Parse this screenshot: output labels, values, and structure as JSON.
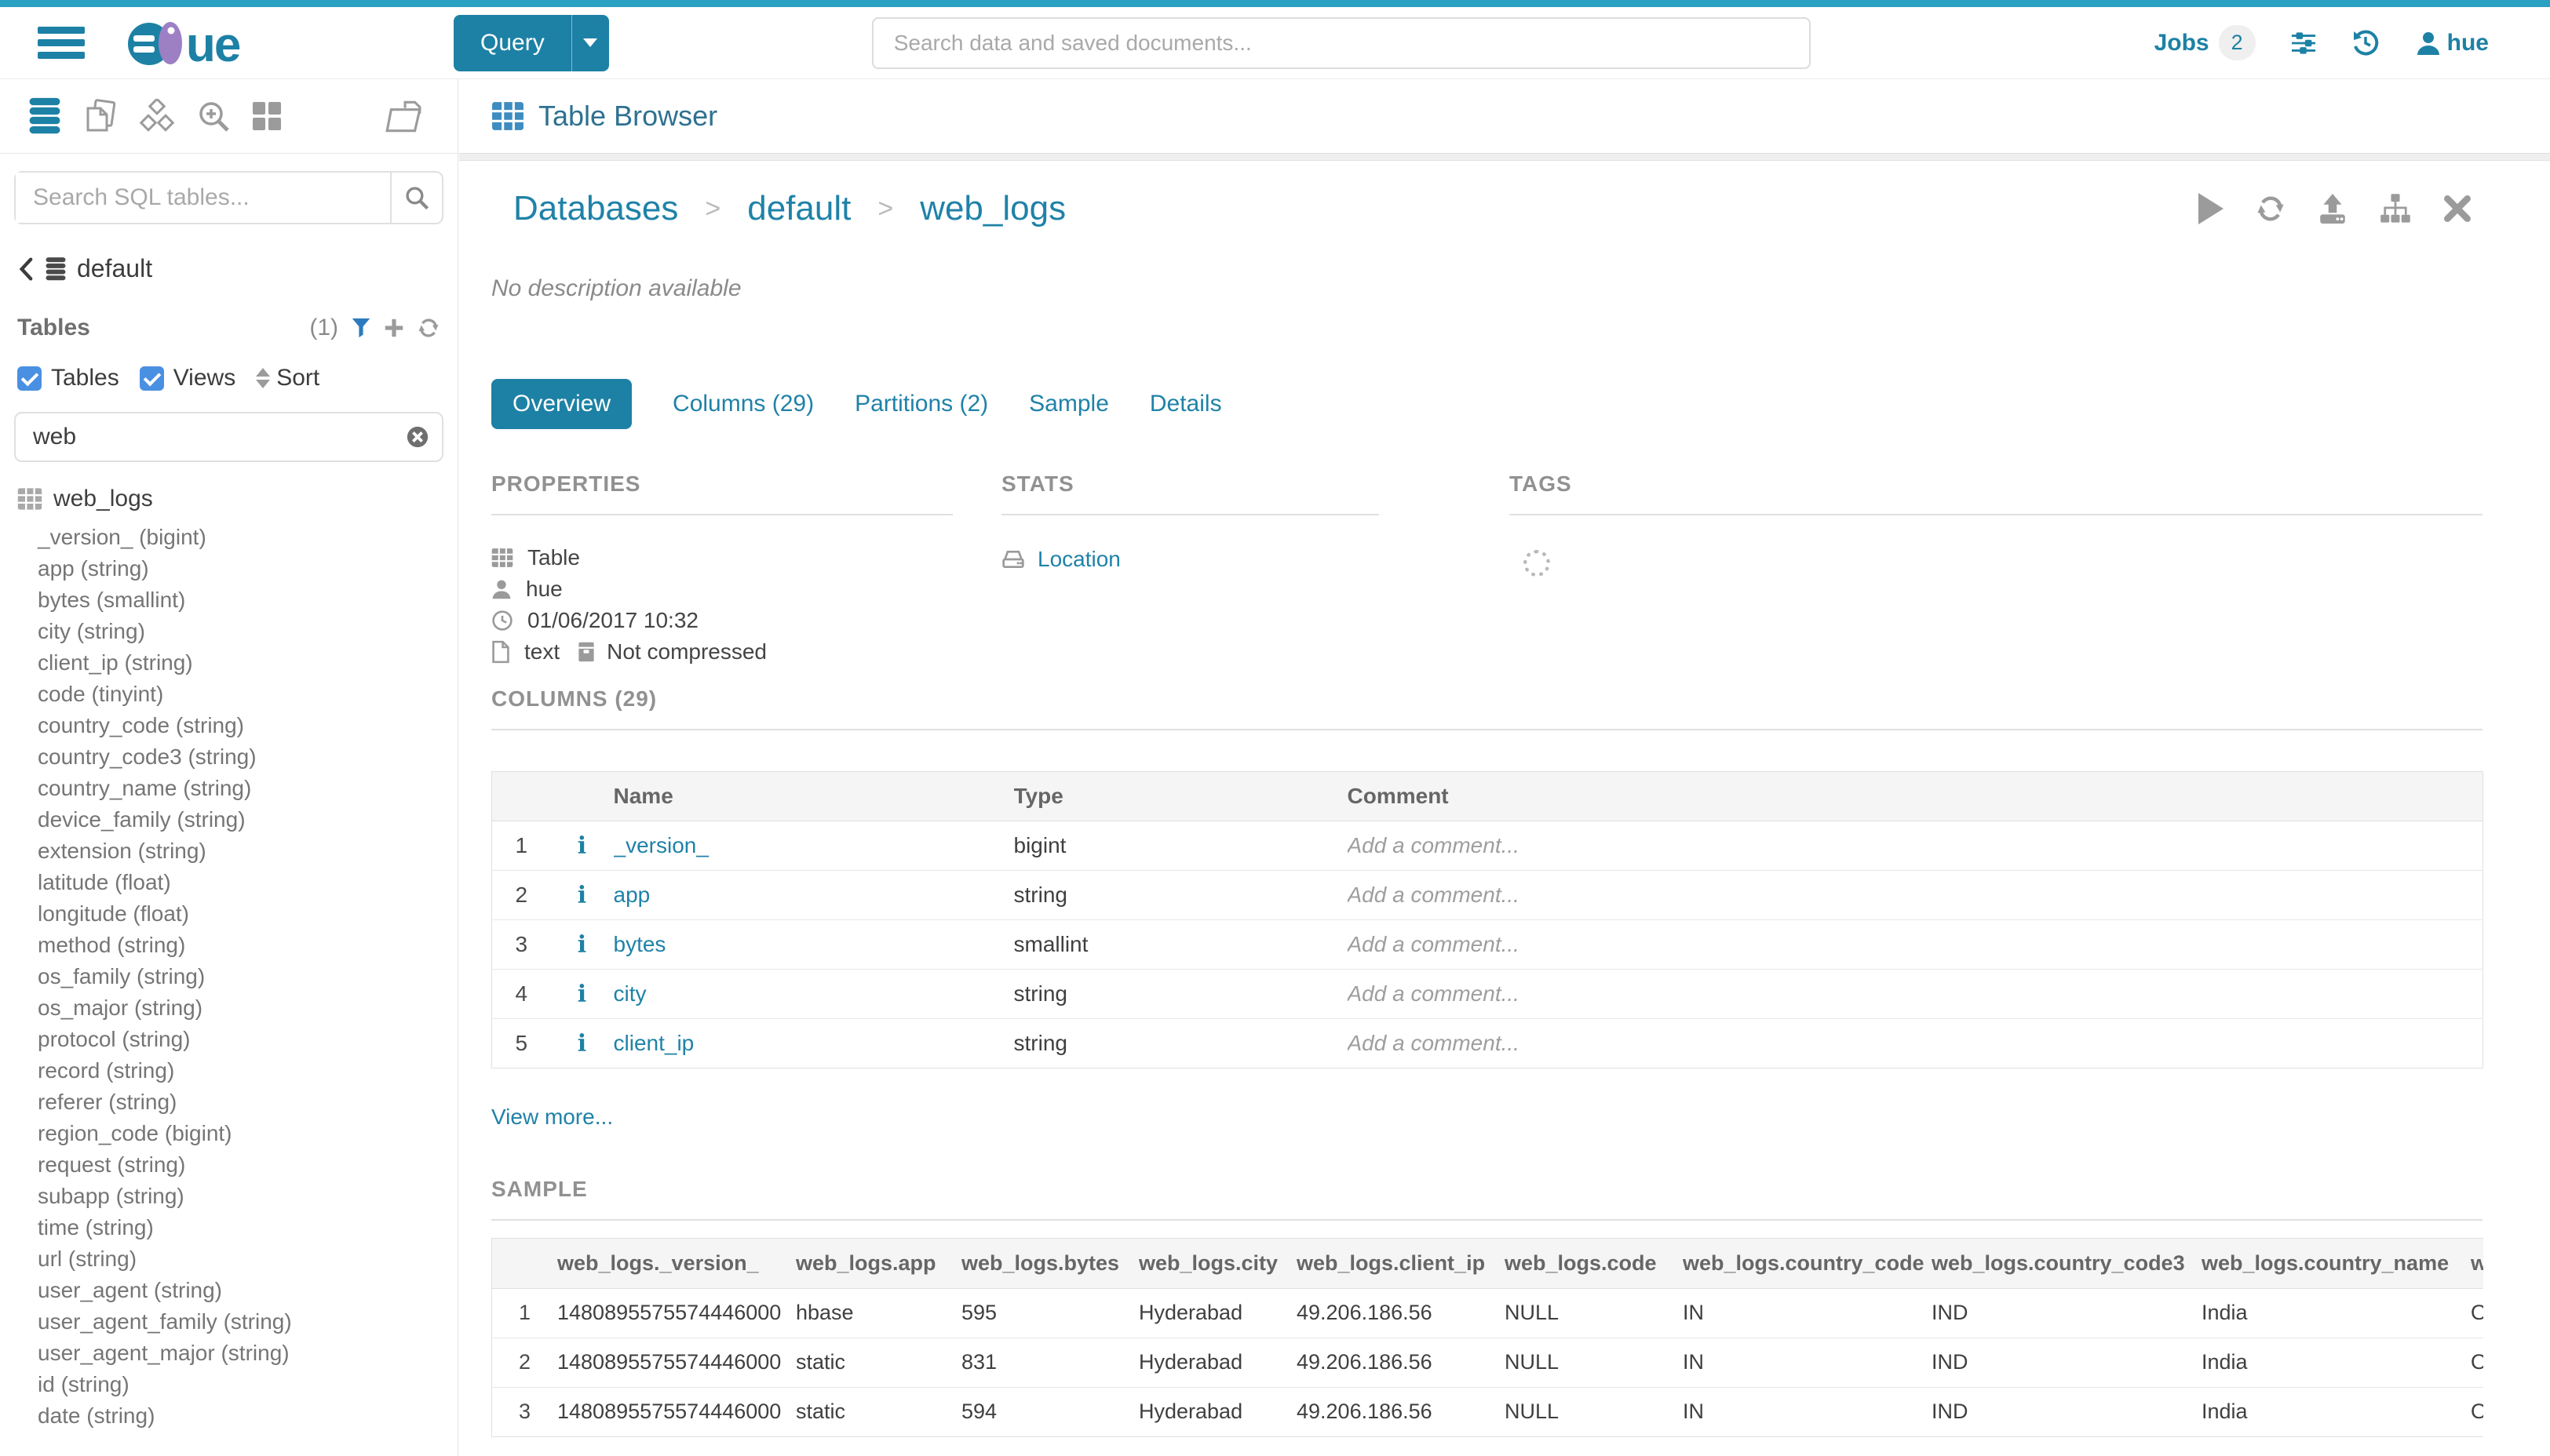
{
  "navbar": {
    "logo_text": "ue",
    "query_label": "Query",
    "search_placeholder": "Search data and saved documents...",
    "jobs_label": "Jobs",
    "jobs_count": "2",
    "user_name": "hue"
  },
  "sidebar": {
    "search_placeholder": "Search SQL tables...",
    "database_name": "default",
    "tables_header": "Tables",
    "tables_count": "(1)",
    "filter_tables_label": "Tables",
    "filter_views_label": "Views",
    "sort_label": "Sort",
    "filter_value": "web",
    "table_name": "web_logs",
    "columns": [
      "_version_ (bigint)",
      "app (string)",
      "bytes (smallint)",
      "city (string)",
      "client_ip (string)",
      "code (tinyint)",
      "country_code (string)",
      "country_code3 (string)",
      "country_name (string)",
      "device_family (string)",
      "extension (string)",
      "latitude (float)",
      "longitude (float)",
      "method (string)",
      "os_family (string)",
      "os_major (string)",
      "protocol (string)",
      "record (string)",
      "referer (string)",
      "region_code (bigint)",
      "request (string)",
      "subapp (string)",
      "time (string)",
      "url (string)",
      "user_agent (string)",
      "user_agent_family (string)",
      "user_agent_major (string)",
      "id (string)",
      "date (string)"
    ]
  },
  "header": {
    "title": "Table Browser"
  },
  "breadcrumb": {
    "items": [
      "Databases",
      "default",
      "web_logs"
    ],
    "separator": ">"
  },
  "overview": {
    "description": "No description available",
    "tabs": [
      {
        "label": "Overview",
        "active": true
      },
      {
        "label": "Columns (29)",
        "active": false
      },
      {
        "label": "Partitions (2)",
        "active": false
      },
      {
        "label": "Sample",
        "active": false
      },
      {
        "label": "Details",
        "active": false
      }
    ],
    "properties": {
      "heading": "PROPERTIES",
      "type": "Table",
      "owner": "hue",
      "created": "01/06/2017 10:32",
      "format": "text",
      "compression": "Not compressed"
    },
    "stats": {
      "heading": "STATS",
      "location_label": "Location"
    },
    "tags": {
      "heading": "TAGS"
    },
    "columns_section": {
      "heading": "COLUMNS (29)",
      "view_more": "View more...",
      "table": {
        "headers": [
          "Name",
          "Type",
          "Comment"
        ],
        "comment_placeholder": "Add a comment...",
        "rows": [
          {
            "num": "1",
            "name": "_version_",
            "type": "bigint"
          },
          {
            "num": "2",
            "name": "app",
            "type": "string"
          },
          {
            "num": "3",
            "name": "bytes",
            "type": "smallint"
          },
          {
            "num": "4",
            "name": "city",
            "type": "string"
          },
          {
            "num": "5",
            "name": "client_ip",
            "type": "string"
          }
        ]
      }
    },
    "sample_section": {
      "heading": "SAMPLE",
      "table": {
        "headers": [
          "web_logs._version_",
          "web_logs.app",
          "web_logs.bytes",
          "web_logs.city",
          "web_logs.client_ip",
          "web_logs.code",
          "web_logs.country_code",
          "web_logs.country_code3",
          "web_logs.country_name",
          "w"
        ],
        "rows": [
          {
            "num": "1",
            "values": [
              "1480895575574446000",
              "hbase",
              "595",
              "Hyderabad",
              "49.206.186.56",
              "NULL",
              "IN",
              "IND",
              "India",
              "O"
            ]
          },
          {
            "num": "2",
            "values": [
              "1480895575574446000",
              "static",
              "831",
              "Hyderabad",
              "49.206.186.56",
              "NULL",
              "IN",
              "IND",
              "India",
              "O"
            ]
          },
          {
            "num": "3",
            "values": [
              "1480895575574446000",
              "static",
              "594",
              "Hyderabad",
              "49.206.186.56",
              "NULL",
              "IN",
              "IND",
              "India",
              "O"
            ]
          }
        ]
      }
    }
  },
  "colors": {
    "accent": "#1d81a5",
    "topline": "#2aa0c2",
    "link": "#1f82a8",
    "checkbox_blue": "#4a90e2",
    "funnel_blue": "#2d7bbf"
  }
}
